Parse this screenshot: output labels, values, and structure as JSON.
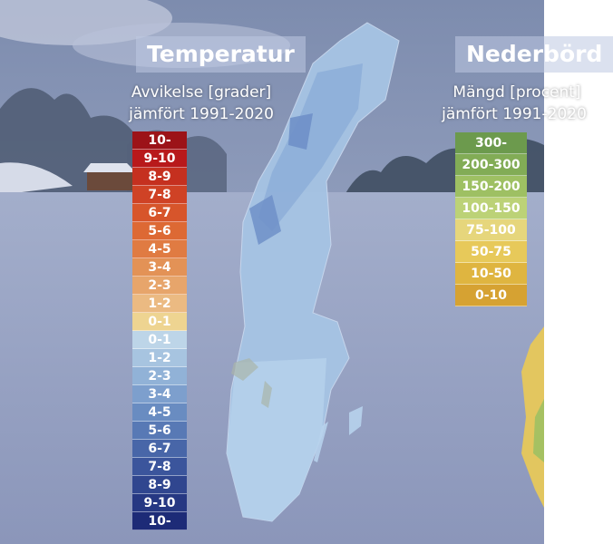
{
  "temperature": {
    "title": "Temperatur",
    "subtitle_line1": "Avvikelse [grader]",
    "subtitle_line2": "jämfört 1991-2020",
    "legend": [
      {
        "label": "10-",
        "color": "#9c1318"
      },
      {
        "label": "9-10",
        "color": "#b8191b"
      },
      {
        "label": "8-9",
        "color": "#c5301f"
      },
      {
        "label": "7-8",
        "color": "#cf4225"
      },
      {
        "label": "6-7",
        "color": "#d7552b"
      },
      {
        "label": "5-6",
        "color": "#dd6934"
      },
      {
        "label": "4-5",
        "color": "#e07b42"
      },
      {
        "label": "3-4",
        "color": "#e39256"
      },
      {
        "label": "2-3",
        "color": "#e7a56b"
      },
      {
        "label": "1-2",
        "color": "#ebba82"
      },
      {
        "label": "0-1",
        "color": "#eed491"
      },
      {
        "label": "0-1",
        "color": "#bdd5e8"
      },
      {
        "label": "1-2",
        "color": "#a7c4e0"
      },
      {
        "label": "2-3",
        "color": "#91b2d7"
      },
      {
        "label": "3-4",
        "color": "#7d9fcd"
      },
      {
        "label": "4-5",
        "color": "#698cc1"
      },
      {
        "label": "5-6",
        "color": "#5879b5"
      },
      {
        "label": "6-7",
        "color": "#4866a8"
      },
      {
        "label": "7-8",
        "color": "#3b559c"
      },
      {
        "label": "8-9",
        "color": "#30468f"
      },
      {
        "label": "9-10",
        "color": "#263883"
      },
      {
        "label": "10-",
        "color": "#1d2b77"
      }
    ]
  },
  "precipitation": {
    "title": "Nederbörd",
    "subtitle_line1": "Mängd [procent]",
    "subtitle_line2": "jämfört 1991-2020",
    "legend": [
      {
        "label": "300-",
        "color": "#6c9a4d"
      },
      {
        "label": "200-300",
        "color": "#82ac56"
      },
      {
        "label": "150-200",
        "color": "#9ec063"
      },
      {
        "label": "100-150",
        "color": "#bcd277"
      },
      {
        "label": "75-100",
        "color": "#e6d67c"
      },
      {
        "label": "50-75",
        "color": "#e7c95a"
      },
      {
        "label": "10-50",
        "color": "#dfb540"
      },
      {
        "label": "0-10",
        "color": "#d6a232"
      }
    ]
  },
  "colors": {
    "sky": "#7f8fb0",
    "snow": "#9da8c8",
    "map_fill": "#a9c6e4",
    "map_dark": "#7b9ccd"
  }
}
